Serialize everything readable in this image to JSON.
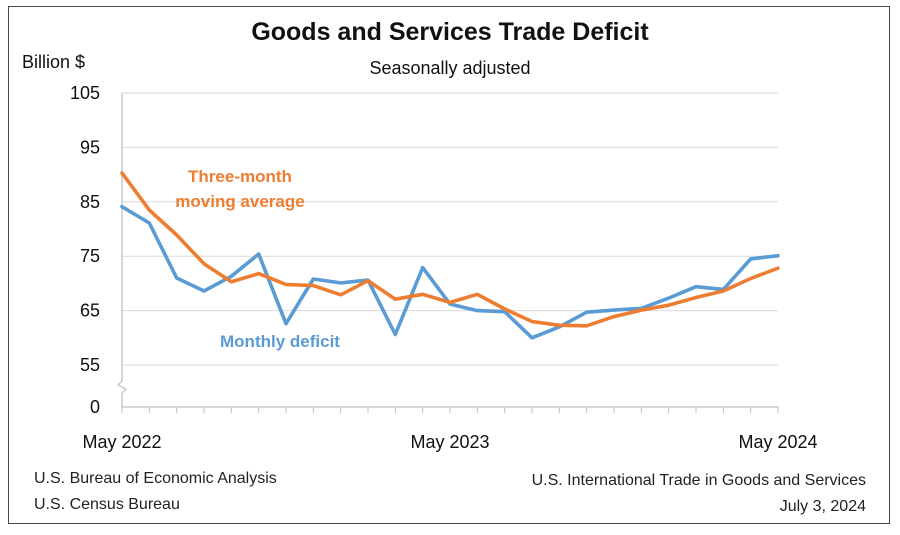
{
  "chart_data": {
    "type": "line",
    "title": "Goods and Services Trade Deficit",
    "subtitle": "Seasonally adjusted",
    "ylabel": "Billion $",
    "ylim": [
      0,
      105
    ],
    "axis_break": true,
    "yticks": [
      0,
      55,
      65,
      75,
      85,
      95,
      105
    ],
    "xtick_labels": [
      "May 2022",
      "May 2023",
      "May 2024"
    ],
    "categories": [
      "2022-05",
      "2022-06",
      "2022-07",
      "2022-08",
      "2022-09",
      "2022-10",
      "2022-11",
      "2022-12",
      "2023-01",
      "2023-02",
      "2023-03",
      "2023-04",
      "2023-05",
      "2023-06",
      "2023-07",
      "2023-08",
      "2023-09",
      "2023-10",
      "2023-11",
      "2023-12",
      "2024-01",
      "2024-02",
      "2024-03",
      "2024-04",
      "2024-05"
    ],
    "grid": true,
    "series": [
      {
        "name": "Monthly deficit",
        "color": "#5B9BD5",
        "values": [
          84.1,
          81.1,
          71.0,
          68.6,
          71.3,
          75.4,
          62.6,
          70.8,
          70.1,
          70.6,
          60.6,
          72.9,
          66.2,
          65.0,
          64.8,
          60.0,
          62.0,
          64.7,
          65.1,
          65.4,
          67.3,
          69.4,
          68.9,
          74.5,
          75.1
        ]
      },
      {
        "name": "Three-month moving average",
        "color": "#ED7D31",
        "values": [
          90.3,
          83.5,
          78.9,
          73.6,
          70.3,
          71.8,
          69.8,
          69.6,
          67.9,
          70.5,
          67.1,
          68.0,
          66.5,
          68.0,
          65.3,
          63.0,
          62.3,
          62.2,
          63.9,
          65.1,
          66.0,
          67.4,
          68.6,
          70.9,
          72.8
        ]
      }
    ],
    "annotations": {
      "moving_average_line1": "Three-month",
      "moving_average_line2": "moving average",
      "monthly": "Monthly deficit"
    }
  },
  "sources": {
    "left_line1": "U.S. Bureau of Economic Analysis",
    "left_line2": "U.S. Census Bureau",
    "right_line1": "U.S. International Trade in Goods and Services",
    "right_line2": "July 3, 2024"
  }
}
